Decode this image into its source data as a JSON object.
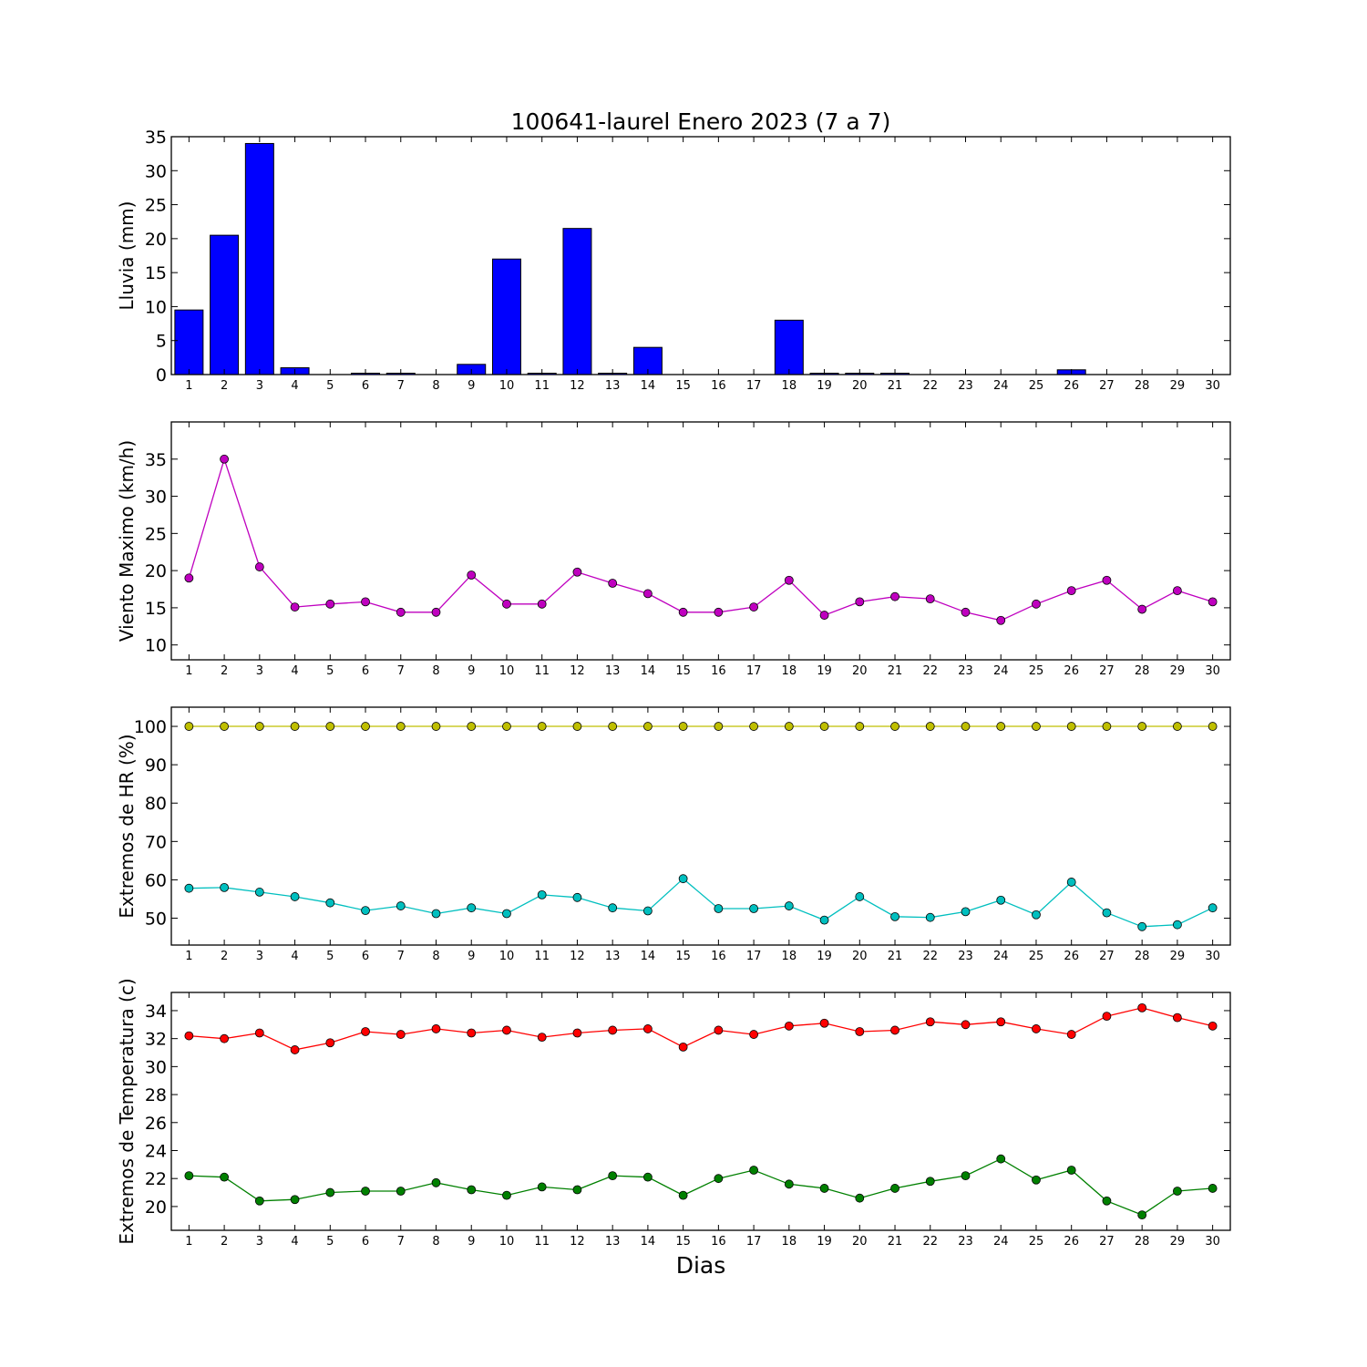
{
  "chart_data": [
    {
      "type": "bar",
      "title": "100641-laurel Enero 2023  (7 a 7)",
      "ylabel": "Lluvia (mm)",
      "xlabel": "",
      "categories": [
        "1",
        "2",
        "3",
        "4",
        "5",
        "6",
        "7",
        "8",
        "9",
        "10",
        "11",
        "12",
        "13",
        "14",
        "15",
        "16",
        "17",
        "18",
        "19",
        "20",
        "21",
        "22",
        "23",
        "24",
        "25",
        "26",
        "27",
        "28",
        "29",
        "30"
      ],
      "ylim": [
        0,
        35
      ],
      "yticks": [
        "0",
        "5",
        "10",
        "15",
        "20",
        "25",
        "30",
        "35"
      ],
      "series": [
        {
          "values": [
            9.5,
            20.5,
            34.0,
            1.0,
            0.0,
            0.2,
            0.2,
            0.0,
            1.5,
            17.0,
            0.2,
            21.5,
            0.2,
            4.0,
            0.0,
            0.0,
            0.0,
            8.0,
            0.2,
            0.2,
            0.2,
            0.0,
            0.0,
            0.0,
            0.0,
            0.7,
            0.0,
            0.0,
            0.0,
            0.0
          ],
          "color": "#0000ff"
        }
      ],
      "grid": false
    },
    {
      "type": "line",
      "title": "",
      "ylabel": "Viento Maximo (km/h)",
      "xlabel": "",
      "x": [
        1,
        2,
        3,
        4,
        5,
        6,
        7,
        8,
        9,
        10,
        11,
        12,
        13,
        14,
        15,
        16,
        17,
        18,
        19,
        20,
        21,
        22,
        23,
        24,
        25,
        26,
        27,
        28,
        29,
        30
      ],
      "xlim": [
        0.5,
        30.5
      ],
      "ylim": [
        8,
        40
      ],
      "yticks": [
        "10",
        "15",
        "20",
        "25",
        "30",
        "35"
      ],
      "series": [
        {
          "values": [
            19.0,
            35.0,
            20.5,
            15.1,
            15.5,
            15.8,
            14.4,
            14.4,
            19.4,
            15.5,
            15.5,
            19.8,
            18.3,
            16.9,
            14.4,
            14.4,
            15.1,
            18.7,
            14.0,
            15.8,
            16.5,
            16.2,
            14.4,
            13.3,
            15.5,
            17.3,
            18.7,
            14.8,
            17.3,
            15.8
          ],
          "color": "#bf00bf"
        }
      ],
      "grid": false
    },
    {
      "type": "line",
      "title": "",
      "ylabel": "Extremos de HR (%)",
      "xlabel": "",
      "x": [
        1,
        2,
        3,
        4,
        5,
        6,
        7,
        8,
        9,
        10,
        11,
        12,
        13,
        14,
        15,
        16,
        17,
        18,
        19,
        20,
        21,
        22,
        23,
        24,
        25,
        26,
        27,
        28,
        29,
        30
      ],
      "xlim": [
        0.5,
        30.5
      ],
      "ylim": [
        43,
        105
      ],
      "yticks": [
        "50",
        "60",
        "70",
        "80",
        "90",
        "100"
      ],
      "series": [
        {
          "values": [
            100,
            100,
            100,
            100,
            100,
            100,
            100,
            100,
            100,
            100,
            100,
            100,
            100,
            100,
            100,
            100,
            100,
            100,
            100,
            100,
            100,
            100,
            100,
            100,
            100,
            100,
            100,
            100,
            100,
            100
          ],
          "color": "#bfbf00"
        },
        {
          "values": [
            57.8,
            58.0,
            56.8,
            55.6,
            54.0,
            52.0,
            53.2,
            51.2,
            52.7,
            51.2,
            56.1,
            55.4,
            52.7,
            51.9,
            60.3,
            52.5,
            52.5,
            53.2,
            49.5,
            55.6,
            50.4,
            50.2,
            51.7,
            54.7,
            50.9,
            59.4,
            51.4,
            47.8,
            48.3,
            52.7
          ],
          "color": "#00bfbf"
        }
      ],
      "grid": false
    },
    {
      "type": "line",
      "title": "",
      "ylabel": "Extremos de Temperatura (c)",
      "xlabel": "Dias",
      "x": [
        1,
        2,
        3,
        4,
        5,
        6,
        7,
        8,
        9,
        10,
        11,
        12,
        13,
        14,
        15,
        16,
        17,
        18,
        19,
        20,
        21,
        22,
        23,
        24,
        25,
        26,
        27,
        28,
        29,
        30
      ],
      "xlim": [
        0.5,
        30.5
      ],
      "ylim": [
        18.3,
        35.3
      ],
      "yticks": [
        "20",
        "22",
        "24",
        "26",
        "28",
        "30",
        "32",
        "34"
      ],
      "series": [
        {
          "values": [
            32.2,
            32.0,
            32.4,
            31.2,
            31.7,
            32.5,
            32.3,
            32.7,
            32.4,
            32.6,
            32.1,
            32.4,
            32.6,
            32.7,
            31.4,
            32.6,
            32.3,
            32.9,
            33.1,
            32.5,
            32.6,
            33.2,
            33.0,
            33.2,
            32.7,
            32.3,
            33.6,
            34.2,
            33.5,
            32.9
          ],
          "color": "#ff0000"
        },
        {
          "values": [
            22.2,
            22.1,
            20.4,
            20.5,
            21.0,
            21.1,
            21.1,
            21.7,
            21.2,
            20.8,
            21.4,
            21.2,
            22.2,
            22.1,
            20.8,
            22.0,
            22.6,
            21.6,
            21.3,
            20.6,
            21.3,
            21.8,
            22.2,
            23.4,
            21.9,
            22.6,
            20.4,
            19.4,
            21.1,
            21.3
          ],
          "color": "#008000"
        }
      ],
      "grid": false
    }
  ]
}
